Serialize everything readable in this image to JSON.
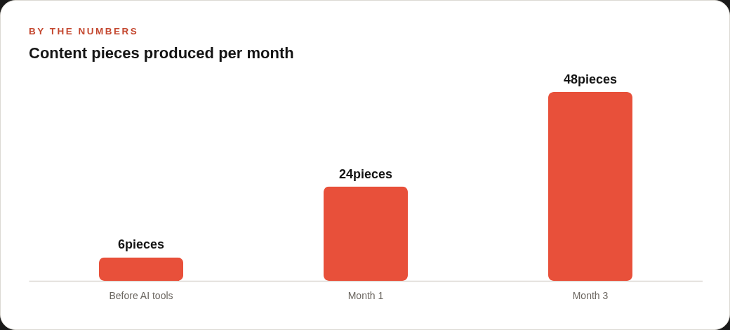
{
  "chart_data": {
    "type": "bar",
    "subtitle": "BY THE NUMBERS",
    "title": "Content pieces produced per month",
    "categories": [
      "Before AI tools",
      "Month 1",
      "Month 3"
    ],
    "values": [
      6,
      24,
      48
    ],
    "color": "#e8503a",
    "value_labels": [
      "6pieces",
      "24pieces",
      "48pieces"
    ],
    "tick_labels": "x"
  }
}
